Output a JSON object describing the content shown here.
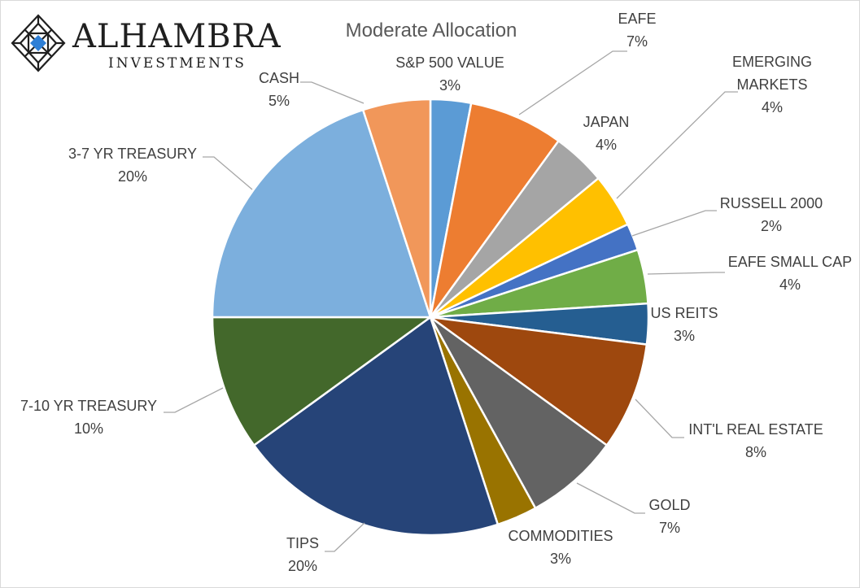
{
  "logo": {
    "name": "ALHAMBRA",
    "subtitle": "INVESTMENTS",
    "accent": "#2e7fd6"
  },
  "chart_data": {
    "type": "pie",
    "title": "Moderate Allocation",
    "start_angle_deg": 0,
    "direction": "clockwise",
    "legend": "none",
    "slices": [
      {
        "label": "S&P 500 VALUE",
        "value": 3,
        "value_label": "3%",
        "color": "#5b9bd5"
      },
      {
        "label": "EAFE",
        "value": 7,
        "value_label": "7%",
        "color": "#ed7d31"
      },
      {
        "label": "JAPAN",
        "value": 4,
        "value_label": "4%",
        "color": "#a5a5a5"
      },
      {
        "label": "EMERGING MARKETS",
        "value": 4,
        "value_label": "4%",
        "color": "#ffc000"
      },
      {
        "label": "RUSSELL 2000",
        "value": 2,
        "value_label": "2%",
        "color": "#4472c4"
      },
      {
        "label": "EAFE SMALL CAP",
        "value": 4,
        "value_label": "4%",
        "color": "#70ad47"
      },
      {
        "label": "US REITS",
        "value": 3,
        "value_label": "3%",
        "color": "#255e91"
      },
      {
        "label": "INT'L REAL ESTATE",
        "value": 8,
        "value_label": "8%",
        "color": "#9e480e"
      },
      {
        "label": "GOLD",
        "value": 7,
        "value_label": "7%",
        "color": "#636363"
      },
      {
        "label": "COMMODITIES",
        "value": 3,
        "value_label": "3%",
        "color": "#997300"
      },
      {
        "label": "TIPS",
        "value": 20,
        "value_label": "20%",
        "color": "#264478"
      },
      {
        "label": "7-10 YR TREASURY",
        "value": 10,
        "value_label": "10%",
        "color": "#43682b"
      },
      {
        "label": "3-7 YR TREASURY",
        "value": 20,
        "value_label": "20%",
        "color": "#7cafdd"
      },
      {
        "label": "CASH",
        "value": 5,
        "value_label": "5%",
        "color": "#f1975a"
      }
    ]
  }
}
